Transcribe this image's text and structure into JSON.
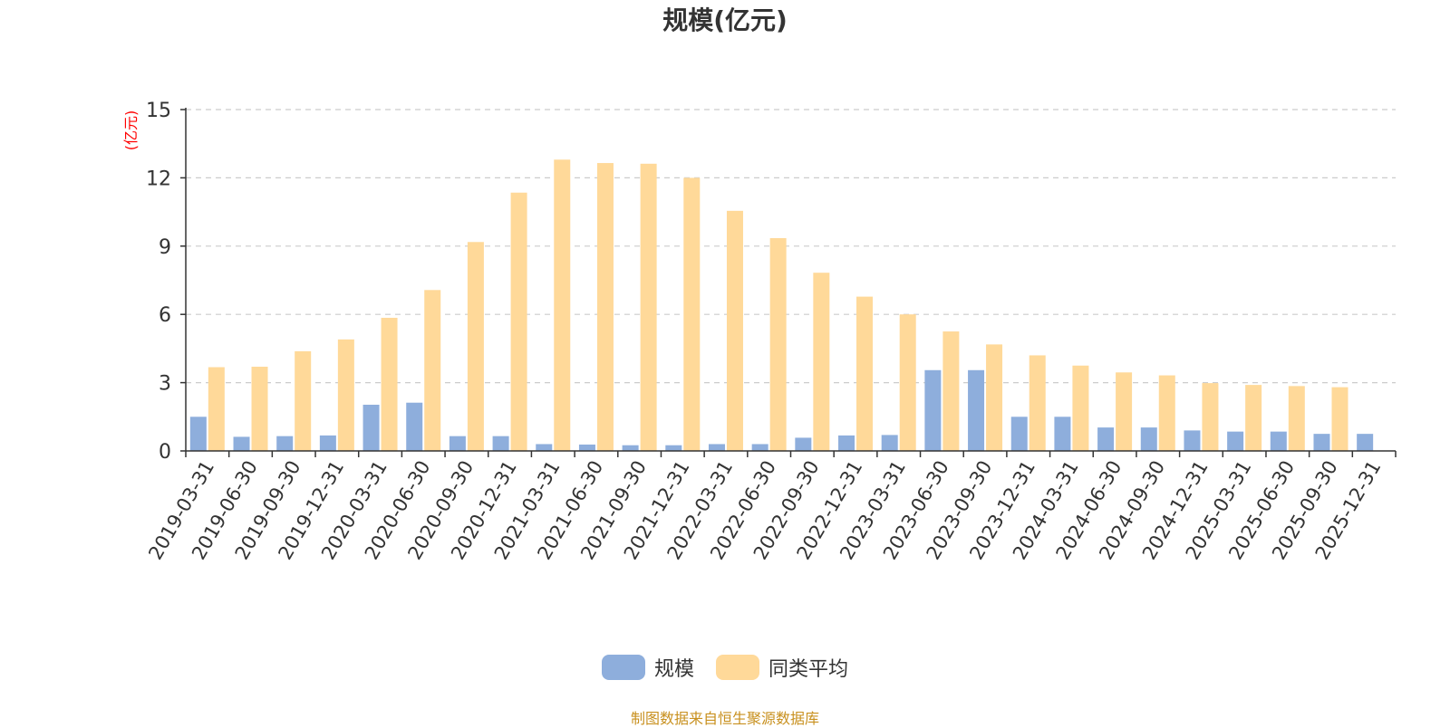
{
  "chart_data": {
    "type": "bar",
    "title": "规模(亿元)",
    "ylabel": "(亿元)",
    "xlabel": "",
    "ylim": [
      0,
      15
    ],
    "yticks": [
      0,
      3,
      6,
      9,
      12,
      15
    ],
    "grid": true,
    "legend_position": "bottom",
    "categories": [
      "2019-03-31",
      "2019-06-30",
      "2019-09-30",
      "2019-12-31",
      "2020-03-31",
      "2020-06-30",
      "2020-09-30",
      "2020-12-31",
      "2021-03-31",
      "2021-06-30",
      "2021-09-30",
      "2021-12-31",
      "2022-03-31",
      "2022-06-30",
      "2022-09-30",
      "2022-12-31",
      "2023-03-31",
      "2023-06-30",
      "2023-09-30",
      "2023-12-31",
      "2024-03-31",
      "2024-06-30",
      "2024-09-30",
      "2024-12-31",
      "2025-03-31",
      "2025-06-30",
      "2025-09-30",
      "2025-12-31"
    ],
    "series": [
      {
        "name": "规模",
        "color": "#8eaedc",
        "values": [
          1.5,
          0.62,
          0.65,
          0.68,
          2.03,
          2.12,
          0.65,
          0.65,
          0.3,
          0.28,
          0.25,
          0.25,
          0.3,
          0.3,
          0.58,
          0.68,
          0.7,
          3.55,
          3.55,
          1.5,
          1.5,
          1.03,
          1.03,
          0.9,
          0.85,
          0.85,
          0.75,
          0.75
        ]
      },
      {
        "name": "同类平均",
        "color": "#ffd999",
        "values": [
          3.68,
          3.7,
          4.38,
          4.9,
          5.85,
          7.07,
          9.18,
          11.35,
          12.8,
          12.65,
          12.62,
          12.0,
          10.55,
          9.35,
          7.83,
          6.78,
          6.0,
          5.25,
          4.68,
          4.2,
          3.75,
          3.45,
          3.32,
          2.98,
          2.9,
          2.85,
          2.8,
          null
        ]
      }
    ]
  },
  "title_color": "#333333",
  "ylabel_color": "#ff0000",
  "source_text": "制图数据来自恒生聚源数据库",
  "source_color": "#c8901e"
}
